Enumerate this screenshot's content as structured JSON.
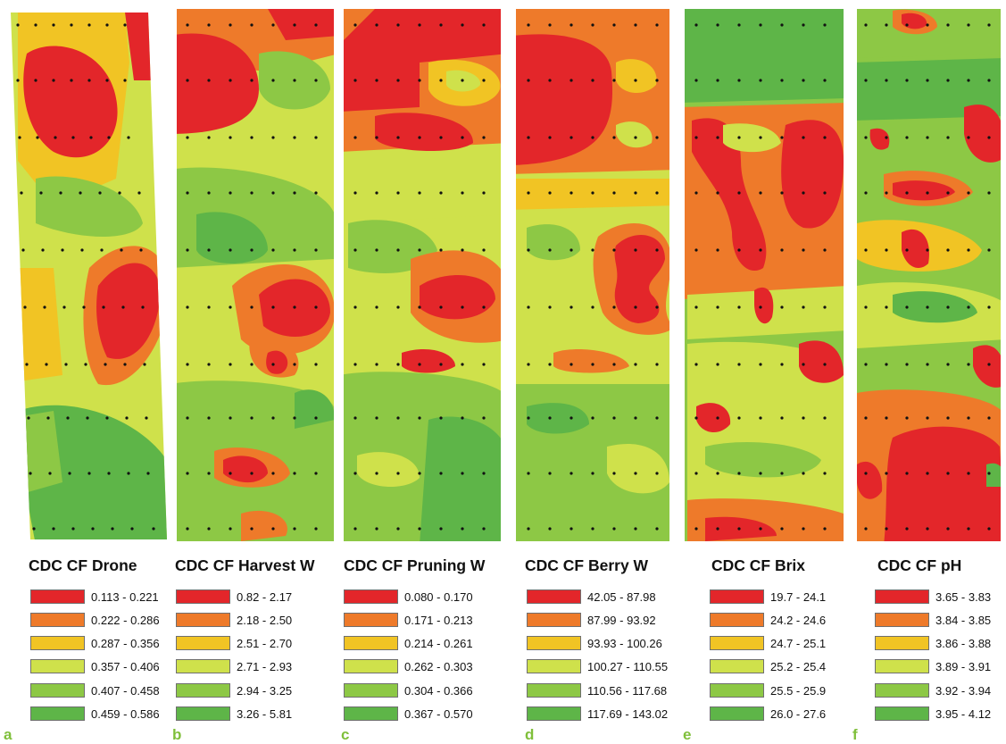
{
  "colors": [
    "#e3262a",
    "#ee7a2a",
    "#f1c424",
    "#cfe14b",
    "#8dc845",
    "#5eb548"
  ],
  "panels": [
    {
      "letter": "a",
      "title": "CDC CF Drone",
      "classes": [
        "0.113 - 0.221",
        "0.222 - 0.286",
        "0.287 - 0.356",
        "0.357 - 0.406",
        "0.407 - 0.458",
        "0.459 - 0.586"
      ]
    },
    {
      "letter": "b",
      "title": "CDC CF Harvest W",
      "classes": [
        "0.82 - 2.17",
        "2.18 - 2.50",
        "2.51 - 2.70",
        "2.71 - 2.93",
        "2.94 - 3.25",
        "3.26 - 5.81"
      ]
    },
    {
      "letter": "c",
      "title": "CDC CF Pruning W",
      "classes": [
        "0.080 - 0.170",
        "0.171 - 0.213",
        "0.214 - 0.261",
        "0.262 - 0.303",
        "0.304 - 0.366",
        "0.367 - 0.570"
      ]
    },
    {
      "letter": "d",
      "title": "CDC CF Berry W",
      "classes": [
        "42.05 - 87.98",
        "87.99 - 93.92",
        "93.93 - 100.26",
        "100.27 - 110.55",
        "110.56 - 117.68",
        "117.69 - 143.02"
      ]
    },
    {
      "letter": "e",
      "title": "CDC CF Brix",
      "classes": [
        "19.7 - 24.1",
        "24.2 - 24.6",
        "24.7 - 25.1",
        "25.2 - 25.4",
        "25.5 - 25.9",
        "26.0 - 27.6"
      ]
    },
    {
      "letter": "f",
      "title": "CDC CF pH",
      "classes": [
        "3.65 - 3.83",
        "3.84 - 3.85",
        "3.86 - 3.88",
        "3.89 - 3.91",
        "3.92 - 3.94",
        "3.95 - 4.12"
      ]
    }
  ]
}
